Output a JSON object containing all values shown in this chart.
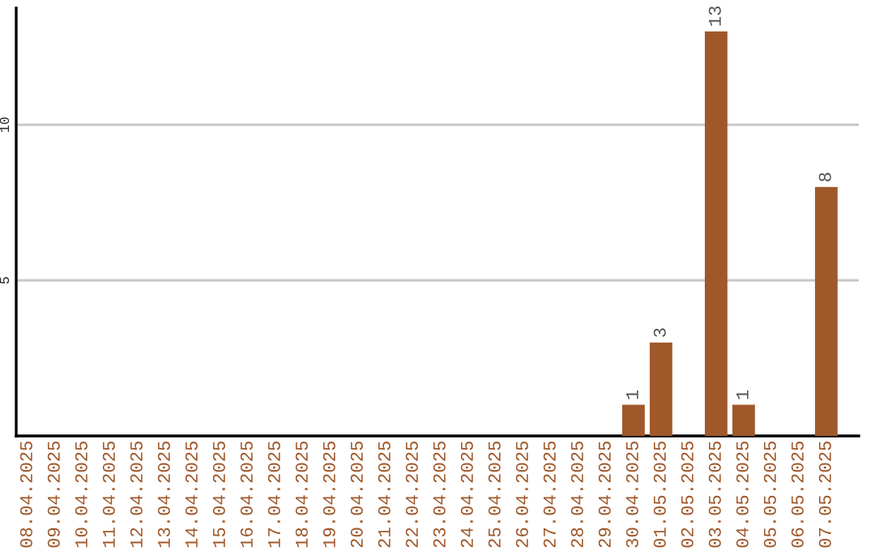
{
  "chart_data": {
    "type": "bar",
    "categories": [
      "08.04.2025",
      "09.04.2025",
      "10.04.2025",
      "11.04.2025",
      "12.04.2025",
      "13.04.2025",
      "14.04.2025",
      "15.04.2025",
      "16.04.2025",
      "17.04.2025",
      "18.04.2025",
      "19.04.2025",
      "20.04.2025",
      "21.04.2025",
      "22.04.2025",
      "23.04.2025",
      "24.04.2025",
      "25.04.2025",
      "26.04.2025",
      "27.04.2025",
      "28.04.2025",
      "29.04.2025",
      "30.04.2025",
      "01.05.2025",
      "02.05.2025",
      "03.05.2025",
      "04.05.2025",
      "05.05.2025",
      "06.05.2025",
      "07.05.2025"
    ],
    "values": [
      0,
      0,
      0,
      0,
      0,
      0,
      0,
      0,
      0,
      0,
      0,
      0,
      0,
      0,
      0,
      0,
      0,
      0,
      0,
      0,
      0,
      0,
      1,
      3,
      0,
      13,
      1,
      0,
      0,
      8
    ],
    "value_labels": [
      null,
      null,
      null,
      null,
      null,
      null,
      null,
      null,
      null,
      null,
      null,
      null,
      null,
      null,
      null,
      null,
      null,
      null,
      null,
      null,
      null,
      null,
      "1",
      "3",
      null,
      "13",
      "1",
      null,
      null,
      "8"
    ],
    "color": "#a0582a",
    "ylim": [
      0,
      13.75
    ],
    "yticks": [
      5,
      10
    ],
    "grid": "y",
    "legend": false
  }
}
